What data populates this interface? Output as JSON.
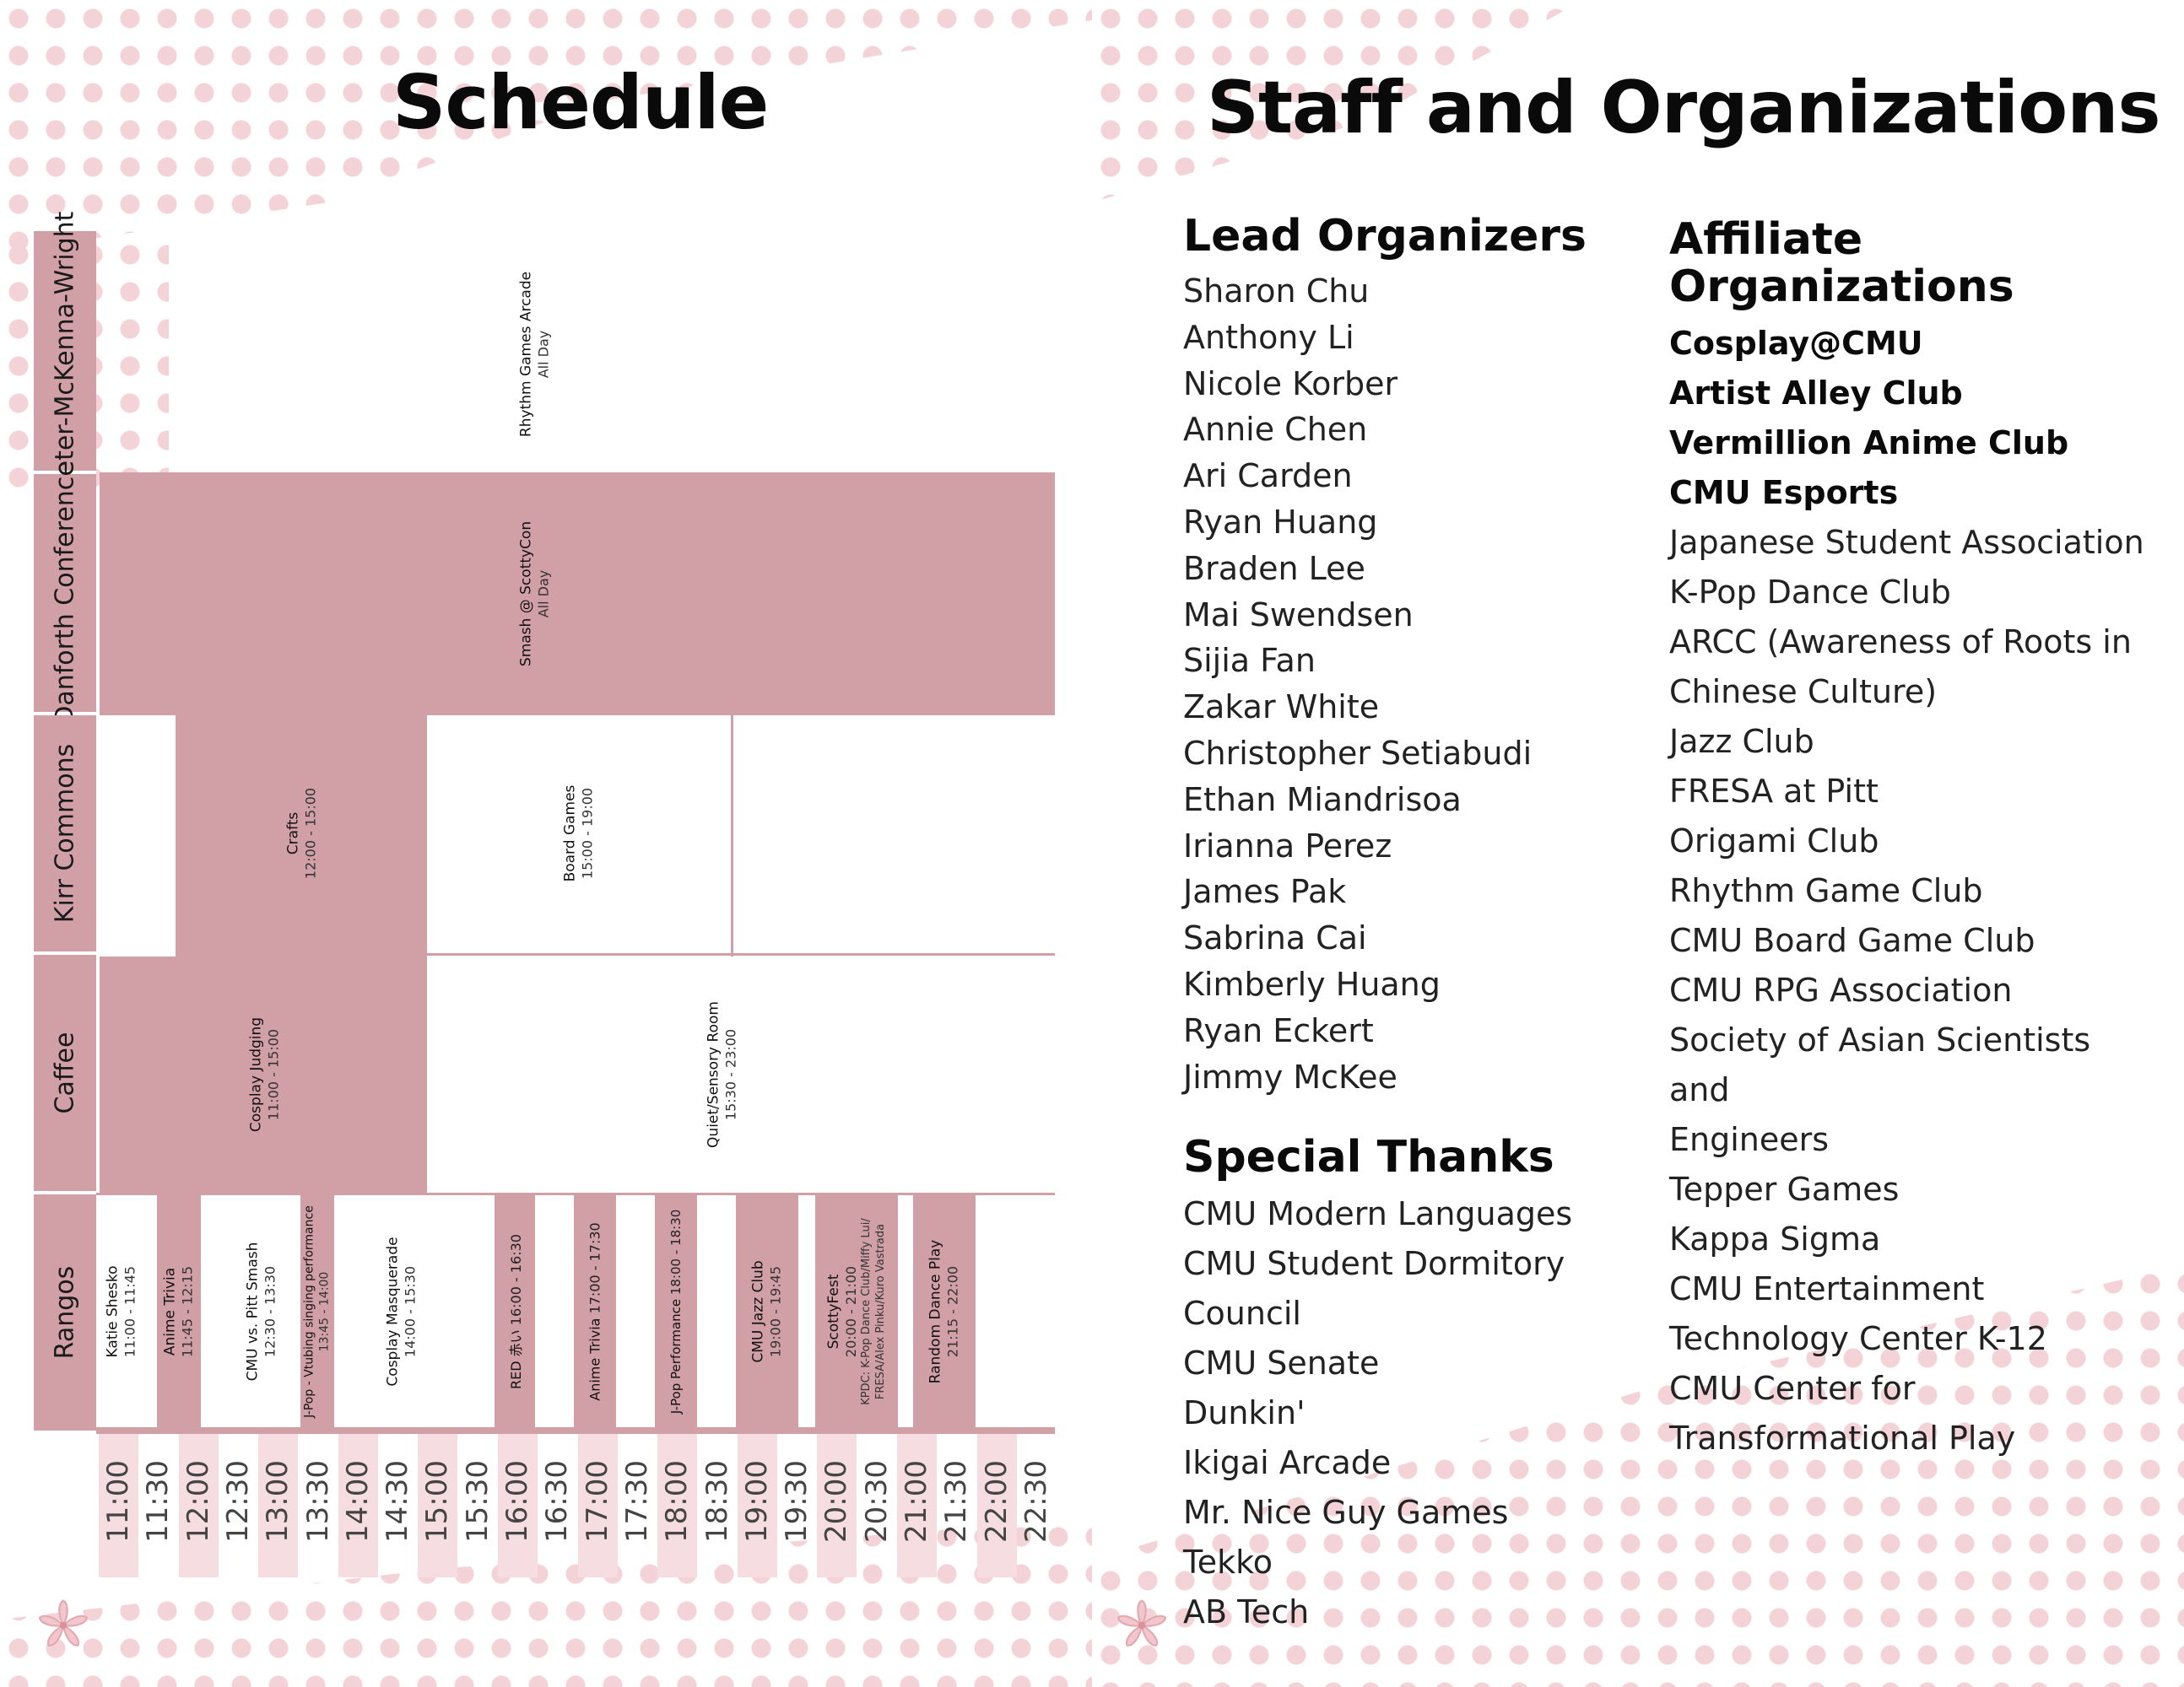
{
  "schedule": {
    "title": "Schedule",
    "rooms": [
      "Peter-McKenna-Wright",
      "Danforth Conference",
      "Kirr Commons",
      "Caffee",
      "Rangos"
    ],
    "times": [
      "11:00",
      "11:30",
      "12:00",
      "12:30",
      "13:00",
      "13:30",
      "14:00",
      "14:30",
      "15:00",
      "15:30",
      "16:00",
      "16:30",
      "17:00",
      "17:30",
      "18:00",
      "18:30",
      "19:00",
      "19:30",
      "20:00",
      "20:30",
      "21:00",
      "21:30",
      "22:00",
      "22:30"
    ],
    "events": {
      "rhythm_games": {
        "name": "Rhythm Games Arcade",
        "time": "All Day"
      },
      "smash": {
        "name": "Smash @ ScottyCon",
        "time": "All Day"
      },
      "crafts": {
        "name": "Crafts",
        "time": "12:00 - 15:00"
      },
      "board_games": {
        "name": "Board Games",
        "time": "15:00 - 19:00"
      },
      "cosplay_judging": {
        "name": "Cosplay Judging",
        "time": "11:00 - 15:00"
      },
      "quiet_room": {
        "name": "Quiet/Sensory Room",
        "time": "15:30 - 23:00"
      },
      "katie": {
        "name": "Katie Shesko",
        "time": "11:00 - 11:45"
      },
      "anime_trivia_1": {
        "name": "Anime Trivia",
        "time": "11:45 - 12:15"
      },
      "cmu_pitt_smash": {
        "name": "CMU vs. Pitt Smash",
        "time": "12:30 - 13:30"
      },
      "jpop_vtubing": {
        "name": "J-Pop - Vtubing singing performance",
        "time": "13:45 - 14:00"
      },
      "cosplay_masquerade": {
        "name": "Cosplay Masquerade",
        "time": "14:00 - 15:30"
      },
      "red_akai": {
        "name": "RED 赤い",
        "time": "16:00 - 16:30"
      },
      "anime_trivia_2": {
        "name": "Anime Trivia",
        "time": "17:00 - 17:30"
      },
      "jpop_perf": {
        "name": "J-Pop Performance",
        "time": "18:00 - 18:30"
      },
      "jazz": {
        "name": "CMU Jazz Club",
        "time": "19:00 - 19:45"
      },
      "scottyfest": {
        "name": "ScottyFest",
        "time": "20:00 - 21:00",
        "line3": "KPDC: K-Pop Dance Club/Miffy Lui/",
        "line4": "FRESA/Alex Pinku/Kuro Vastrada"
      },
      "random_dance": {
        "name": "Random Dance Play",
        "time": "21:15 - 22:00"
      }
    }
  },
  "staff": {
    "title": "Staff and Organizations",
    "lead_title": "Lead Organizers",
    "lead": [
      "Sharon Chu",
      "Anthony Li",
      "Nicole Korber",
      "Annie Chen",
      "Ari Carden",
      "Ryan Huang",
      "Braden Lee",
      "Mai Swendsen",
      "Sijia Fan",
      "Zakar White",
      "Christopher Setiabudi",
      "Ethan Miandrisoa",
      "Irianna Perez",
      "James Pak",
      "Sabrina Cai",
      "Kimberly Huang",
      "Ryan Eckert",
      "Jimmy McKee"
    ],
    "thanks_title": "Special Thanks",
    "thanks": [
      "CMU Modern Languages",
      "CMU Student Dormitory",
      "Council",
      "CMU Senate",
      "Dunkin'",
      "Ikigai Arcade",
      "Mr. Nice Guy Games",
      "Tekko",
      "AB Tech"
    ],
    "aff_title_1": "Affiliate",
    "aff_title_2": "Organizations",
    "affiliates_bold": [
      "Cosplay@CMU",
      "Artist Alley Club",
      "Vermillion Anime Club",
      "CMU Esports"
    ],
    "affiliates": [
      "Japanese Student Association",
      "K-Pop Dance Club",
      "ARCC (Awareness of Roots in",
      "Chinese Culture)",
      "Jazz Club",
      "FRESA at Pitt",
      "Origami Club",
      "Rhythm Game Club",
      "CMU Board Game Club",
      "CMU RPG Association",
      "Society of Asian Scientists and",
      "Engineers",
      "Tepper Games",
      "Kappa Sigma",
      "CMU Entertainment",
      "Technology Center K-12",
      "CMU Center for",
      "Transformational Play"
    ]
  },
  "colors": {
    "accent": "#d19fa6",
    "stripe": "#f5dde1",
    "dots": "#f4d3d8"
  }
}
